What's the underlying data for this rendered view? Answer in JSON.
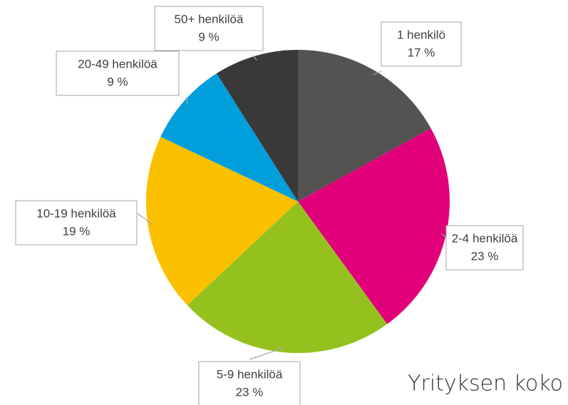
{
  "chart_data": {
    "type": "pie",
    "title": "Yrityksen koko",
    "categories": [
      "1 henkilö",
      "2-4 henkilöä",
      "5-9 henkilöä",
      "10-19 henkilöä",
      "20-49 henkilöä",
      "50+ henkilöä"
    ],
    "values": [
      17,
      23,
      23,
      19,
      9,
      9
    ],
    "value_labels": [
      "17 %",
      "23 %",
      "23 %",
      "19 %",
      "9 %",
      "9 %"
    ],
    "colors": [
      "#555352",
      "#e2007a",
      "#95c11f",
      "#fbc100",
      "#009fdb",
      "#3a3839"
    ]
  }
}
